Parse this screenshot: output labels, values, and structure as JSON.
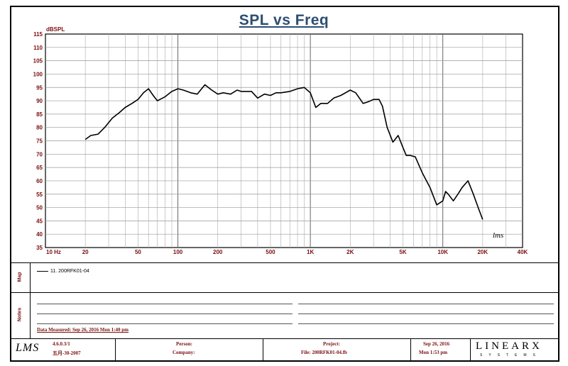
{
  "chart_data": {
    "type": "line",
    "title": "SPL vs Freq",
    "ylabel": "dBSPL",
    "xlabel": "",
    "x_scale": "log",
    "xlim": [
      10,
      40000
    ],
    "ylim": [
      35,
      115
    ],
    "y_ticks": [
      35,
      40,
      45,
      50,
      55,
      60,
      65,
      70,
      75,
      80,
      85,
      90,
      95,
      100,
      105,
      110,
      115
    ],
    "x_tick_labels": [
      {
        "value": 10,
        "label": "10  Hz"
      },
      {
        "value": 20,
        "label": "20"
      },
      {
        "value": 50,
        "label": "50"
      },
      {
        "value": 100,
        "label": "100"
      },
      {
        "value": 200,
        "label": "200"
      },
      {
        "value": 500,
        "label": "500"
      },
      {
        "value": 1000,
        "label": "1K"
      },
      {
        "value": 2000,
        "label": "2K"
      },
      {
        "value": 5000,
        "label": "5K"
      },
      {
        "value": 10000,
        "label": "10K"
      },
      {
        "value": 20000,
        "label": "20K"
      },
      {
        "value": 40000,
        "label": "40K"
      }
    ],
    "grid": true,
    "series": [
      {
        "name": "11. 200RFK01-04",
        "color": "#000000",
        "x": [
          20,
          22,
          25,
          28,
          32,
          36,
          40,
          45,
          50,
          55,
          60,
          65,
          70,
          80,
          90,
          100,
          110,
          125,
          140,
          160,
          180,
          200,
          220,
          250,
          280,
          300,
          330,
          360,
          400,
          450,
          500,
          550,
          600,
          700,
          800,
          900,
          1000,
          1100,
          1200,
          1350,
          1500,
          1700,
          2000,
          2200,
          2500,
          2700,
          3000,
          3300,
          3500,
          3800,
          4200,
          4600,
          5000,
          5300,
          5700,
          6200,
          7000,
          8000,
          9000,
          10000,
          10500,
          11000,
          12000,
          13000,
          14000,
          15500,
          17000,
          18500,
          20000
        ],
        "y": [
          75.5,
          77,
          77.5,
          80,
          83.5,
          85.5,
          87.5,
          89,
          90.5,
          93,
          94.5,
          92,
          90,
          91.5,
          93.5,
          94.5,
          94,
          93,
          92.5,
          96,
          94,
          92.5,
          93,
          92.5,
          94,
          93.5,
          93.5,
          93.5,
          91,
          92.5,
          92,
          93,
          93,
          93.5,
          94.5,
          95,
          93,
          87.5,
          89,
          89,
          91,
          92,
          94,
          93,
          89,
          89.5,
          90.5,
          90.5,
          88,
          80,
          74.5,
          77,
          72.5,
          69.5,
          69.5,
          69,
          63,
          57.5,
          51,
          52.5,
          56,
          55,
          52.5,
          55,
          57.5,
          60,
          55,
          50,
          45.5
        ]
      }
    ]
  },
  "panels": {
    "map_label": "Map",
    "notes_label": "Notes",
    "legend_entry": "11. 200RFK01-04",
    "data_measured": "Data Measured: Sep 26, 2016  Mon  1:40 pm"
  },
  "footer": {
    "lms_logo": "LMS",
    "version": "4.6.0.3/1",
    "build_date": "五月-30-2007",
    "person_label": "Person:",
    "company_label": "Company:",
    "project_label": "Project:",
    "file_label": "File: 200RFK01-04.fb",
    "date": "Sep 26, 2016",
    "time": "Mon  1:53 pm",
    "brand": "LINEARX",
    "brand_sub": "SYSTEMS"
  },
  "watermark": "lms"
}
